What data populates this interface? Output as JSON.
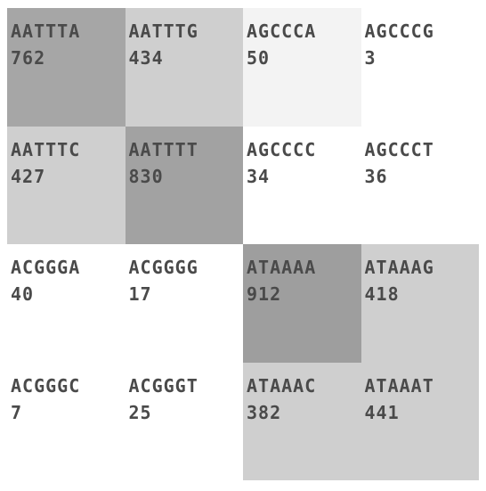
{
  "cells": [
    {
      "seq": "AATTTA",
      "count": "762",
      "bg": "#a6a6a6"
    },
    {
      "seq": "AATTTG",
      "count": "434",
      "bg": "#cfcfcf"
    },
    {
      "seq": "AGCCCA",
      "count": "50",
      "bg": "#f3f3f3"
    },
    {
      "seq": "AGCCCG",
      "count": "3",
      "bg": "#ffffff"
    },
    {
      "seq": "AATTTC",
      "count": "427",
      "bg": "#cfcfcf"
    },
    {
      "seq": "AATTTT",
      "count": "830",
      "bg": "#a2a2a2"
    },
    {
      "seq": "AGCCCC",
      "count": "34",
      "bg": "#ffffff"
    },
    {
      "seq": "AGCCCT",
      "count": "36",
      "bg": "#ffffff"
    },
    {
      "seq": "ACGGGA",
      "count": "40",
      "bg": "#ffffff"
    },
    {
      "seq": "ACGGGG",
      "count": "17",
      "bg": "#ffffff"
    },
    {
      "seq": "ATAAAA",
      "count": "912",
      "bg": "#9e9e9e"
    },
    {
      "seq": "ATAAAG",
      "count": "418",
      "bg": "#cfcfcf"
    },
    {
      "seq": "ACGGGC",
      "count": "7",
      "bg": "#ffffff"
    },
    {
      "seq": "ACGGGT",
      "count": "25",
      "bg": "#ffffff"
    },
    {
      "seq": "ATAAAC",
      "count": "382",
      "bg": "#cfcfcf"
    },
    {
      "seq": "ATAAAT",
      "count": "441",
      "bg": "#cfcfcf"
    }
  ]
}
